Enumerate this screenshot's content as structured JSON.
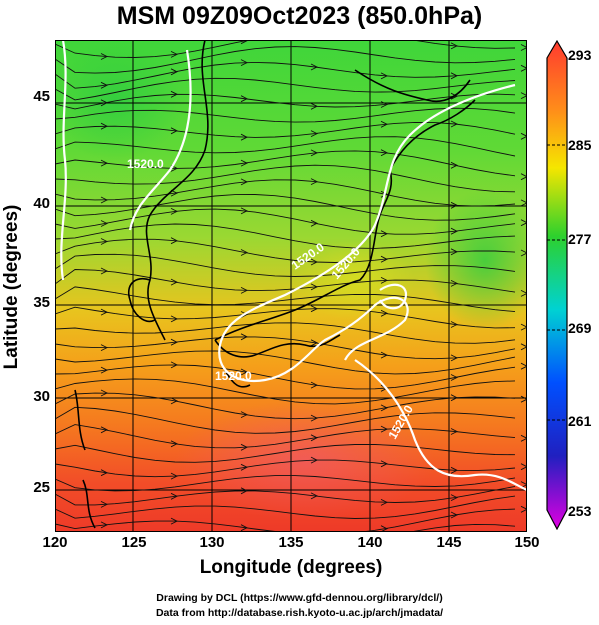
{
  "title": "MSM 09Z09Oct2023 (850.0hPa)",
  "x_axis": {
    "label": "Longitude (degrees)",
    "ticks": [
      "120",
      "125",
      "130",
      "135",
      "140",
      "145",
      "150"
    ]
  },
  "y_axis": {
    "label": "Latitude  (degrees)",
    "ticks": [
      "45",
      "40",
      "35",
      "30",
      "25"
    ]
  },
  "colorbar": {
    "ticks": [
      "293",
      "285",
      "277",
      "269",
      "261",
      "253"
    ],
    "colors": [
      "#ff3b2f",
      "#ff8c1a",
      "#f5e600",
      "#2dd12d",
      "#00d2d2",
      "#0050ff",
      "#2020c0",
      "#e000e0"
    ]
  },
  "contour_labels": [
    "1520.0",
    "1520.0",
    "1520.0",
    "1520.0",
    "1520.0"
  ],
  "footer": {
    "line1": "Drawing by DCL (https://www.gfd-dennou.org/library/dcl/)",
    "line2": "Data from http://database.rish.kyoto-u.ac.jp/arch/jmadata/"
  }
}
